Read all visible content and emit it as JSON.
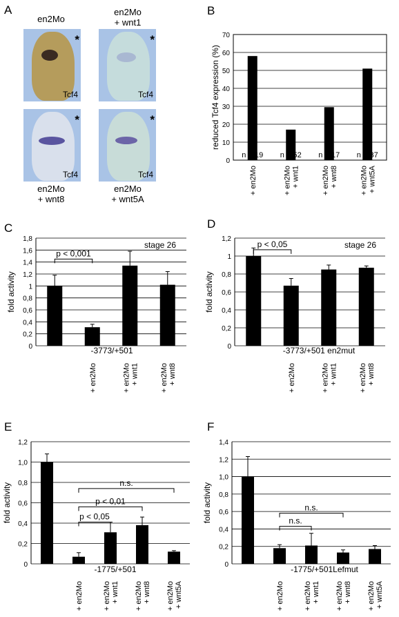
{
  "panel_a": {
    "letter": "A",
    "images": [
      {
        "caption_top": [
          "en2Mo"
        ],
        "caption_bottom": [],
        "label": "Tcf4",
        "mark": "*"
      },
      {
        "caption_top": [
          "en2Mo",
          "+ wnt1"
        ],
        "caption_bottom": [],
        "label": "Tcf4",
        "mark": "*"
      },
      {
        "caption_top": [],
        "caption_bottom": [
          "en2Mo",
          "+ wnt8"
        ],
        "label": "Tcf4",
        "mark": "*"
      },
      {
        "caption_top": [],
        "caption_bottom": [
          "en2Mo",
          "+ wnt5A"
        ],
        "label": "Tcf4",
        "mark": "*"
      }
    ]
  },
  "chart_data": [
    {
      "panel": "B",
      "type": "bar",
      "ylabel": "reduced Tcf4 expression (%)",
      "ylim": [
        0,
        70
      ],
      "yticks": [
        0,
        10,
        20,
        30,
        40,
        50,
        60,
        70
      ],
      "categories": [
        [
          "+ en2Mo"
        ],
        [
          "+ en2Mo",
          "+ wnt1"
        ],
        [
          "+ en2Mo",
          "+ wnt8"
        ],
        [
          "+ en2Mo",
          "+ wnt5A"
        ]
      ],
      "values": [
        58,
        17,
        29.5,
        51
      ],
      "errors": [],
      "n_labels": [
        "n = 19",
        "n = 52",
        "n = 17",
        "n = 37"
      ],
      "annotations": [],
      "brackets": [],
      "construct": "",
      "stage": ""
    },
    {
      "panel": "C",
      "type": "bar",
      "ylabel": "fold activity",
      "ylim": [
        0,
        1.8
      ],
      "yticks": [
        "0",
        "0,2",
        "0,4",
        "0,6",
        "0,8",
        "1",
        "1,2",
        "1,4",
        "1,6",
        "1,8"
      ],
      "categories": [
        [],
        [
          "+ en2Mo"
        ],
        [
          "+ en2Mo",
          "+ wnt1"
        ],
        [
          "+ en2Mo",
          "+ wnt8"
        ]
      ],
      "values": [
        1.0,
        0.31,
        1.34,
        1.02
      ],
      "errors": [
        0.18,
        0.05,
        0.24,
        0.22
      ],
      "n_labels": [],
      "construct": "-3773/+501",
      "stage": "stage 26",
      "brackets": [
        {
          "from": 0,
          "to": 1,
          "y": 1.45,
          "label": "p < 0,001"
        }
      ]
    },
    {
      "panel": "D",
      "type": "bar",
      "ylabel": "fold activity",
      "ylim": [
        0,
        1.2
      ],
      "yticks": [
        "0",
        "0,2",
        "0,4",
        "0,6",
        "0,8",
        "1",
        "1,2"
      ],
      "categories": [
        [],
        [
          "+ en2Mo"
        ],
        [
          "+ en2Mo",
          "+ wnt1"
        ],
        [
          "+ en2Mo",
          "+ wnt8"
        ]
      ],
      "values": [
        1.0,
        0.67,
        0.85,
        0.87
      ],
      "errors": [
        0.09,
        0.08,
        0.05,
        0.02
      ],
      "n_labels": [],
      "construct": "-3773/+501 en2mut",
      "stage": "stage 26",
      "brackets": [
        {
          "from": 0,
          "to": 1,
          "y": 1.07,
          "label": "p < 0,05"
        }
      ]
    },
    {
      "panel": "E",
      "type": "bar",
      "ylabel": "fold activity",
      "ylim": [
        0,
        1.2
      ],
      "yticks": [
        "0",
        "0,2",
        "0,4",
        "0,6",
        "0,8",
        "1,0",
        "1,2"
      ],
      "categories": [
        [],
        [
          "+ en2Mo"
        ],
        [
          "+ en2Mo",
          "+ wnt1"
        ],
        [
          "+ en2Mo",
          "+ wnt8"
        ],
        [
          "+ en2Mo",
          "+ wnt5A"
        ]
      ],
      "values": [
        1.0,
        0.07,
        0.31,
        0.38,
        0.12
      ],
      "errors": [
        0.08,
        0.04,
        0.1,
        0.08,
        0.01
      ],
      "n_labels": [],
      "construct": "-1775/+501",
      "stage": "",
      "brackets": [
        {
          "from": 1,
          "to": 4,
          "y": 0.74,
          "label": "n.s."
        },
        {
          "from": 1,
          "to": 3,
          "y": 0.56,
          "label": "p < 0,01"
        },
        {
          "from": 1,
          "to": 2,
          "y": 0.41,
          "label": "p < 0,05"
        }
      ]
    },
    {
      "panel": "F",
      "type": "bar",
      "ylabel": "fold activity",
      "ylim": [
        0,
        1.4
      ],
      "yticks": [
        "0",
        "0,2",
        "0,4",
        "0,6",
        "0,8",
        "1,0",
        "1,2",
        "1,4"
      ],
      "categories": [
        [],
        [
          "+ en2Mo"
        ],
        [
          "+ en2Mo",
          "+ wnt1"
        ],
        [
          "+ en2Mo",
          "+ wnt8"
        ],
        [
          "+ en2Mo",
          "+ wnt5A"
        ]
      ],
      "values": [
        1.0,
        0.18,
        0.21,
        0.13,
        0.17
      ],
      "errors": [
        0.23,
        0.04,
        0.14,
        0.03,
        0.04
      ],
      "n_labels": [],
      "construct": "-1775/+501Lefmut",
      "stage": "",
      "brackets": [
        {
          "from": 1,
          "to": 3,
          "y": 0.58,
          "label": "n.s."
        },
        {
          "from": 1,
          "to": 2,
          "y": 0.43,
          "label": "n.s."
        }
      ]
    }
  ]
}
